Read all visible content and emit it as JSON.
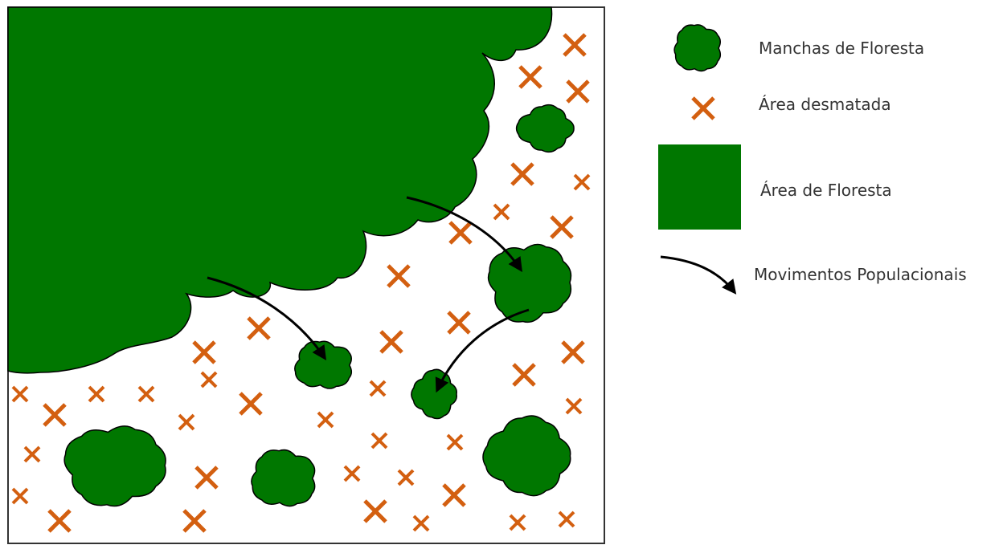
{
  "legend": {
    "items": [
      {
        "key": "forest_patch",
        "label": "Manchas de Floresta"
      },
      {
        "key": "deforested",
        "label": "Área desmatada"
      },
      {
        "key": "forest_area",
        "label": "Área de Floresta"
      },
      {
        "key": "movement",
        "label": "Movimentos Populacionais"
      }
    ]
  },
  "colors": {
    "forest": "#007700",
    "outline": "#000000",
    "cross": "#d35f10",
    "frame": "#333333",
    "background": "#ffffff"
  },
  "icons": [
    "forest-patch-icon",
    "deforested-cross-icon",
    "forest-area-icon",
    "movement-arrow-icon"
  ]
}
